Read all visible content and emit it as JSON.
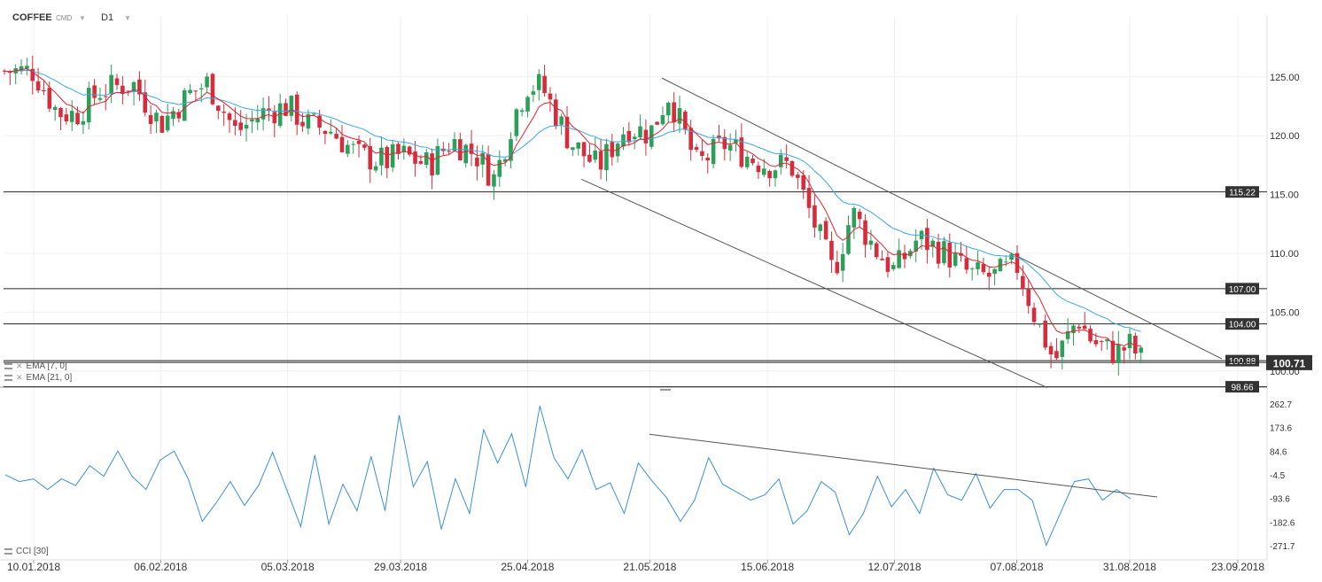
{
  "header": {
    "symbol": "COFFEE",
    "market": "CMD",
    "timeframe": "D1"
  },
  "indicators": {
    "ema_fast_label": "EMA [7, 0]",
    "ema_slow_label": "EMA [21, 0]",
    "cci_label": "CCI [30]"
  },
  "colors": {
    "up_candle": "#2e9f5a",
    "down_candle": "#d62d3c",
    "ema_fast": "#e0232f",
    "ema_slow": "#3aa9e0",
    "cci_line": "#3a8fdb",
    "trend_line": "#555555",
    "level_line": "#222222",
    "price_badge": "#333333"
  },
  "chart_data": [
    {
      "type": "candlestick",
      "title": "",
      "price_axis": {
        "ylim": [
          98.66,
          127.3
        ],
        "ticks": [
          "125.00",
          "120.00",
          "115.00",
          "110.00",
          "105.00",
          "100.00"
        ]
      },
      "date_axis": {
        "start": "10.01.2018",
        "end": "23.09.2018",
        "ticks": [
          "10.01.2018",
          "06.02.2018",
          "05.03.2018",
          "29.03.2018",
          "25.04.2018",
          "21.05.2018",
          "15.06.2018",
          "12.07.2018",
          "07.08.2018",
          "31.08.2018",
          "23.09.2018"
        ]
      },
      "horizontal_levels": [
        {
          "value": 115.22,
          "label": "115.22"
        },
        {
          "value": 107.0,
          "label": "107.00"
        },
        {
          "value": 104.0,
          "label": "104.00"
        },
        {
          "value": 100.88,
          "label": "100.88"
        },
        {
          "value": 98.66,
          "label": "98.66"
        }
      ],
      "current_price": {
        "value": 100.71,
        "label": "100.71"
      },
      "close_path": [
        [
          "10.01.2018",
          125.5
        ],
        [
          "15.01.2018",
          122.0
        ],
        [
          "19.01.2018",
          121.8
        ],
        [
          "24.01.2018",
          123.8
        ],
        [
          "31.01.2018",
          124.5
        ],
        [
          "06.02.2018",
          121.0
        ],
        [
          "12.02.2018",
          123.5
        ],
        [
          "16.02.2018",
          124.5
        ],
        [
          "22.02.2018",
          120.3
        ],
        [
          "28.02.2018",
          122.0
        ],
        [
          "05.03.2018",
          122.5
        ],
        [
          "09.03.2018",
          121.0
        ],
        [
          "14.03.2018",
          120.5
        ],
        [
          "20.03.2018",
          118.3
        ],
        [
          "26.03.2018",
          117.8
        ],
        [
          "29.03.2018",
          118.4
        ],
        [
          "04.04.2018",
          117.5
        ],
        [
          "09.04.2018",
          119.6
        ],
        [
          "14.04.2018",
          118.4
        ],
        [
          "18.04.2018",
          116.3
        ],
        [
          "22.04.2018",
          121.6
        ],
        [
          "25.04.2018",
          124.3
        ],
        [
          "28.04.2018",
          124.2
        ],
        [
          "04.05.2018",
          119.5
        ],
        [
          "10.05.2018",
          117.3
        ],
        [
          "16.05.2018",
          120.8
        ],
        [
          "21.05.2018",
          120.2
        ],
        [
          "25.05.2018",
          123.5
        ],
        [
          "31.05.2018",
          117.5
        ],
        [
          "06.06.2018",
          119.3
        ],
        [
          "12.06.2018",
          118.0
        ],
        [
          "15.06.2018",
          117.5
        ],
        [
          "20.06.2018",
          117.5
        ],
        [
          "25.06.2018",
          112.5
        ],
        [
          "29.06.2018",
          108.3
        ],
        [
          "03.07.2018",
          113.5
        ],
        [
          "08.07.2018",
          110.3
        ],
        [
          "12.07.2018",
          108.5
        ],
        [
          "17.07.2018",
          111.3
        ],
        [
          "23.07.2018",
          110.0
        ],
        [
          "28.07.2018",
          108.2
        ],
        [
          "02.08.2018",
          108.0
        ],
        [
          "07.08.2018",
          109.0
        ],
        [
          "11.08.2018",
          104.5
        ],
        [
          "15.08.2018",
          100.8
        ],
        [
          "20.08.2018",
          104.5
        ],
        [
          "23.08.2018",
          102.5
        ],
        [
          "28.08.2018",
          101.5
        ],
        [
          "31.08.2018",
          102.2
        ],
        [
          "03.09.2018",
          100.71
        ]
      ],
      "series": [
        {
          "name": "EMA [7, 0]"
        },
        {
          "name": "EMA [21, 0]"
        }
      ]
    },
    {
      "type": "line",
      "title": "",
      "series_name": "CCI [30]",
      "ylim": [
        -271.7,
        262.7
      ],
      "ticks": [
        "262.7",
        "173.6",
        "84.6",
        "-4.5",
        "-93.6",
        "-182.6",
        "-271.7"
      ],
      "values": [
        -5,
        -30,
        -20,
        -60,
        -20,
        -45,
        30,
        -10,
        85,
        -10,
        -60,
        50,
        85,
        -20,
        -180,
        -110,
        -30,
        -120,
        -45,
        80,
        -60,
        -200,
        70,
        -190,
        -40,
        -140,
        65,
        -140,
        220,
        -50,
        45,
        -210,
        -20,
        -150,
        165,
        40,
        150,
        -50,
        255,
        60,
        -20,
        90,
        -60,
        -35,
        -150,
        40,
        -30,
        -90,
        -180,
        -100,
        60,
        -40,
        -70,
        -100,
        -80,
        -20,
        -190,
        -140,
        -30,
        -70,
        -230,
        -150,
        -10,
        -125,
        -60,
        -150,
        20,
        -80,
        -100,
        0,
        -130,
        -60,
        -60,
        -100,
        -270,
        -150,
        -30,
        -20,
        -100,
        -60,
        -95
      ]
    }
  ]
}
